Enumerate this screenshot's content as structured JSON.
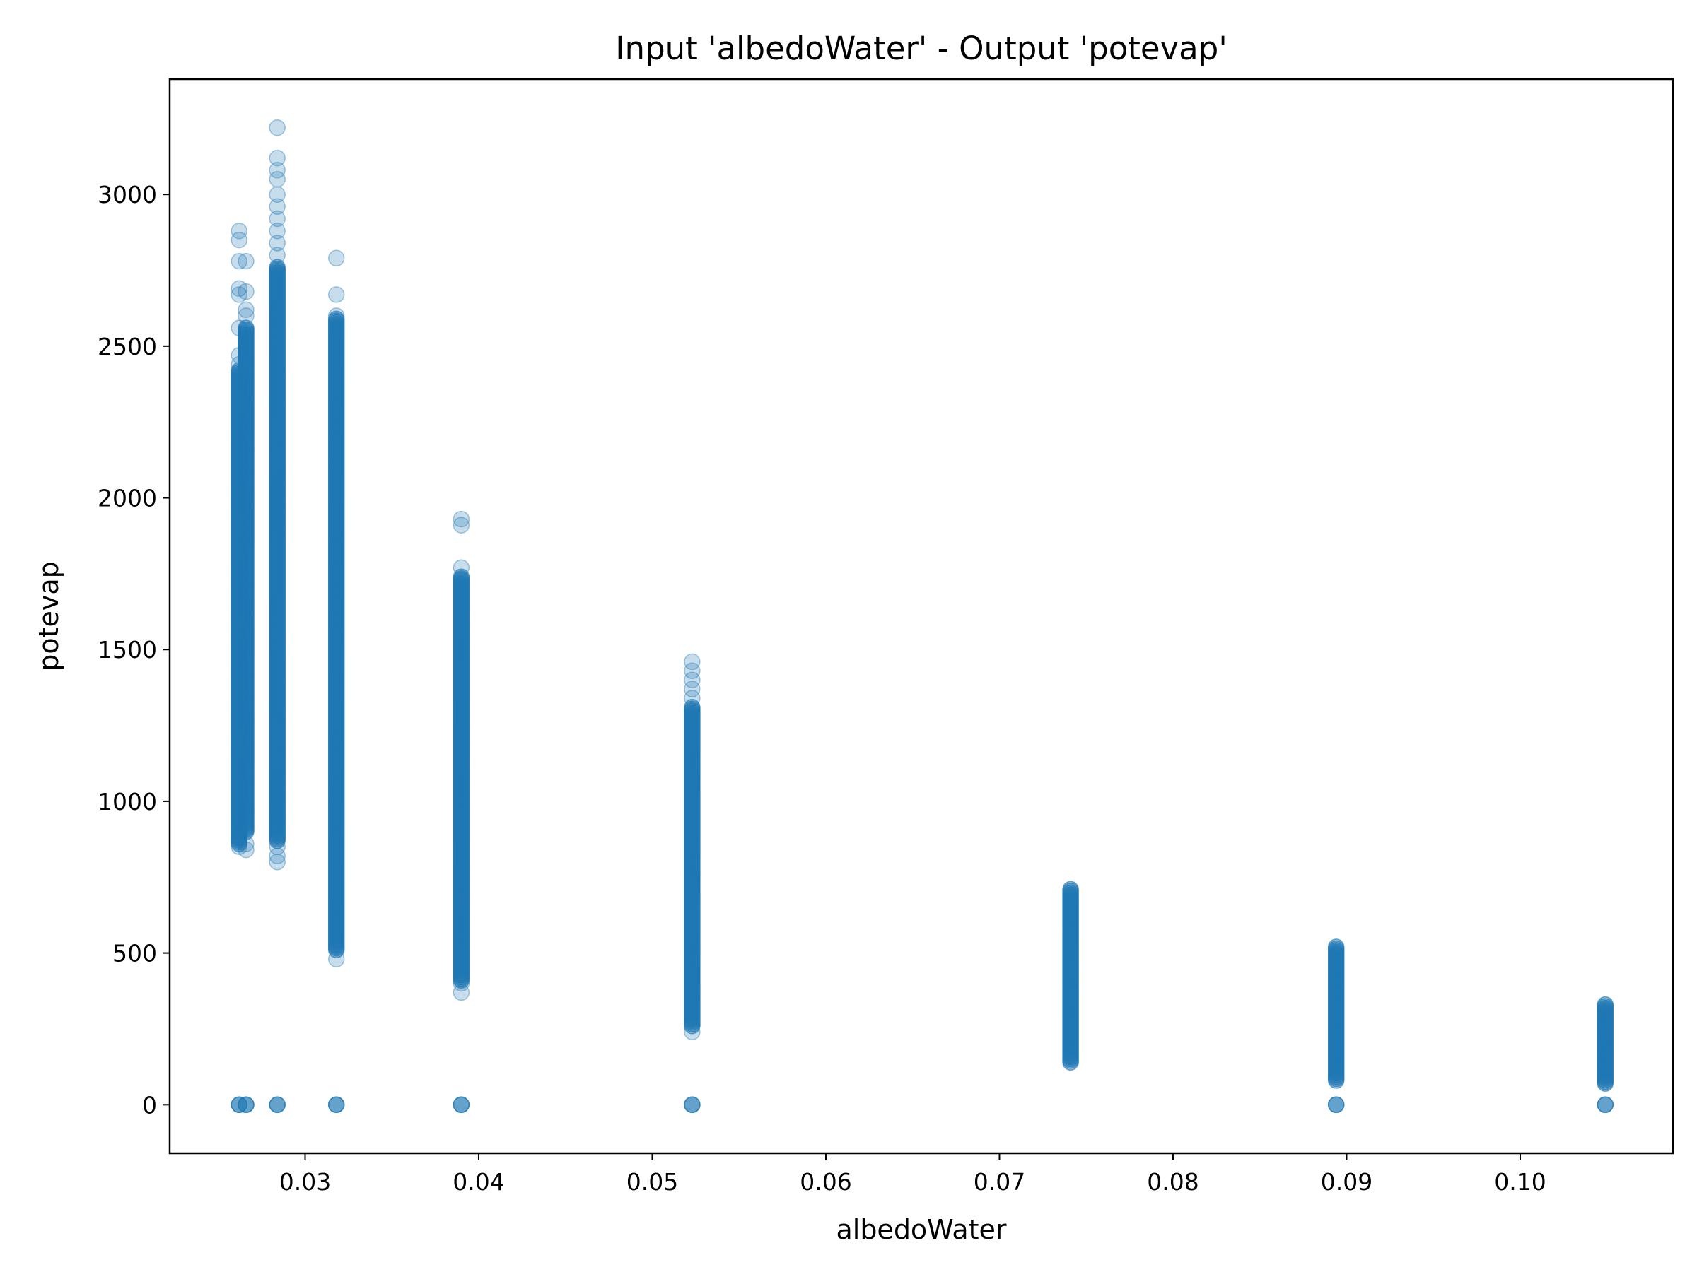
{
  "chart_data": {
    "type": "scatter",
    "title": "Input 'albedoWater' - Output 'potevap'",
    "xlabel": "albedoWater",
    "ylabel": "potevap",
    "xlim": [
      0.0222,
      0.1088
    ],
    "ylim": [
      -160,
      3380
    ],
    "xticks": [
      0.03,
      0.04,
      0.05,
      0.06,
      0.07,
      0.08,
      0.09,
      0.1
    ],
    "xtick_labels": [
      "0.03",
      "0.04",
      "0.05",
      "0.06",
      "0.07",
      "0.08",
      "0.09",
      "0.10"
    ],
    "yticks": [
      0,
      500,
      1000,
      1500,
      2000,
      2500,
      3000
    ],
    "ytick_labels": [
      "0",
      "500",
      "1000",
      "1500",
      "2000",
      "2500",
      "3000"
    ],
    "grid": false,
    "marker_color": "#1f77b4",
    "marker_alpha": 0.25,
    "series": [
      {
        "columns": [
          {
            "x": 0.0262,
            "y_min": 860,
            "y_max": 2420,
            "outliers": [
              2880,
              2850,
              2780,
              2690,
              2670,
              2560,
              2470,
              2440,
              850,
              880
            ],
            "zero": true
          },
          {
            "x": 0.0266,
            "y_min": 900,
            "y_max": 2560,
            "outliers": [
              2780,
              2680,
              2620,
              2600,
              840,
              860
            ],
            "zero": true
          },
          {
            "x": 0.0284,
            "y_min": 870,
            "y_max": 2760,
            "outliers": [
              3220,
              3120,
              3080,
              3050,
              3000,
              2960,
              2920,
              2880,
              2840,
              2800,
              800,
              820,
              850
            ],
            "zero": true
          },
          {
            "x": 0.0318,
            "y_min": 510,
            "y_max": 2590,
            "outliers": [
              2790,
              2670,
              2600,
              480
            ],
            "zero": true
          },
          {
            "x": 0.039,
            "y_min": 410,
            "y_max": 1740,
            "outliers": [
              1930,
              1910,
              1770,
              370,
              400
            ],
            "zero": true
          },
          {
            "x": 0.0523,
            "y_min": 260,
            "y_max": 1310,
            "outliers": [
              1460,
              1430,
              1400,
              1370,
              1340,
              240
            ],
            "zero": true
          },
          {
            "x": 0.0741,
            "y_min": 140,
            "y_max": 710,
            "outliers": [],
            "zero": false
          },
          {
            "x": 0.0894,
            "y_min": 80,
            "y_max": 520,
            "outliers": [],
            "zero": true
          },
          {
            "x": 0.1049,
            "y_min": 70,
            "y_max": 330,
            "outliers": [],
            "zero": true
          }
        ]
      }
    ]
  }
}
